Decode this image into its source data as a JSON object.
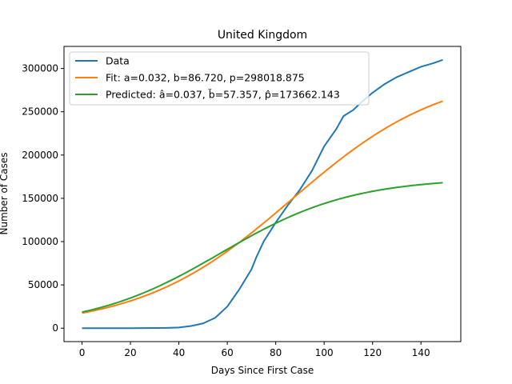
{
  "chart_data": {
    "type": "line",
    "title": "United Kingdom",
    "xlabel": "Days Since First Case",
    "ylabel": "Number of Cases",
    "xlim": [
      -7.45,
      156.45
    ],
    "ylim": [
      -15500,
      325500
    ],
    "xticks": [
      0,
      20,
      40,
      60,
      80,
      100,
      120,
      140
    ],
    "yticks": [
      0,
      50000,
      100000,
      150000,
      200000,
      250000,
      300000
    ],
    "xtick_labels": [
      "0",
      "20",
      "40",
      "60",
      "80",
      "100",
      "120",
      "140"
    ],
    "ytick_labels": [
      "0",
      "50000",
      "100000",
      "150000",
      "200000",
      "250000",
      "300000"
    ],
    "grid": false,
    "legend_position": "upper-left",
    "series": [
      {
        "name": "Data",
        "color": "#1f77b4",
        "x": [
          0,
          10,
          20,
          30,
          35,
          40,
          45,
          50,
          55,
          60,
          65,
          70,
          72,
          75,
          80,
          85,
          90,
          95,
          100,
          105,
          108,
          112,
          115,
          120,
          125,
          130,
          135,
          140,
          145,
          149
        ],
        "y": [
          0,
          0,
          0,
          200,
          300,
          800,
          2500,
          5500,
          12000,
          25000,
          45000,
          68000,
          82000,
          100000,
          122000,
          142000,
          160000,
          182000,
          210000,
          230000,
          245000,
          252000,
          260000,
          272000,
          282000,
          290000,
          296000,
          302000,
          306000,
          310000
        ]
      },
      {
        "name": "Fit: a=0.032, b=86.720, p=298018.875",
        "color": "#ff7f0e",
        "func": "logistic",
        "a": 0.032,
        "b": 86.72,
        "p": 298018.875
      },
      {
        "name": "Predicted: â=0.037, b̆=57.357, p̂=173662.143",
        "color": "#2ca02c",
        "func": "logistic",
        "a": 0.037,
        "b": 57.357,
        "p": 173662.143
      }
    ]
  }
}
